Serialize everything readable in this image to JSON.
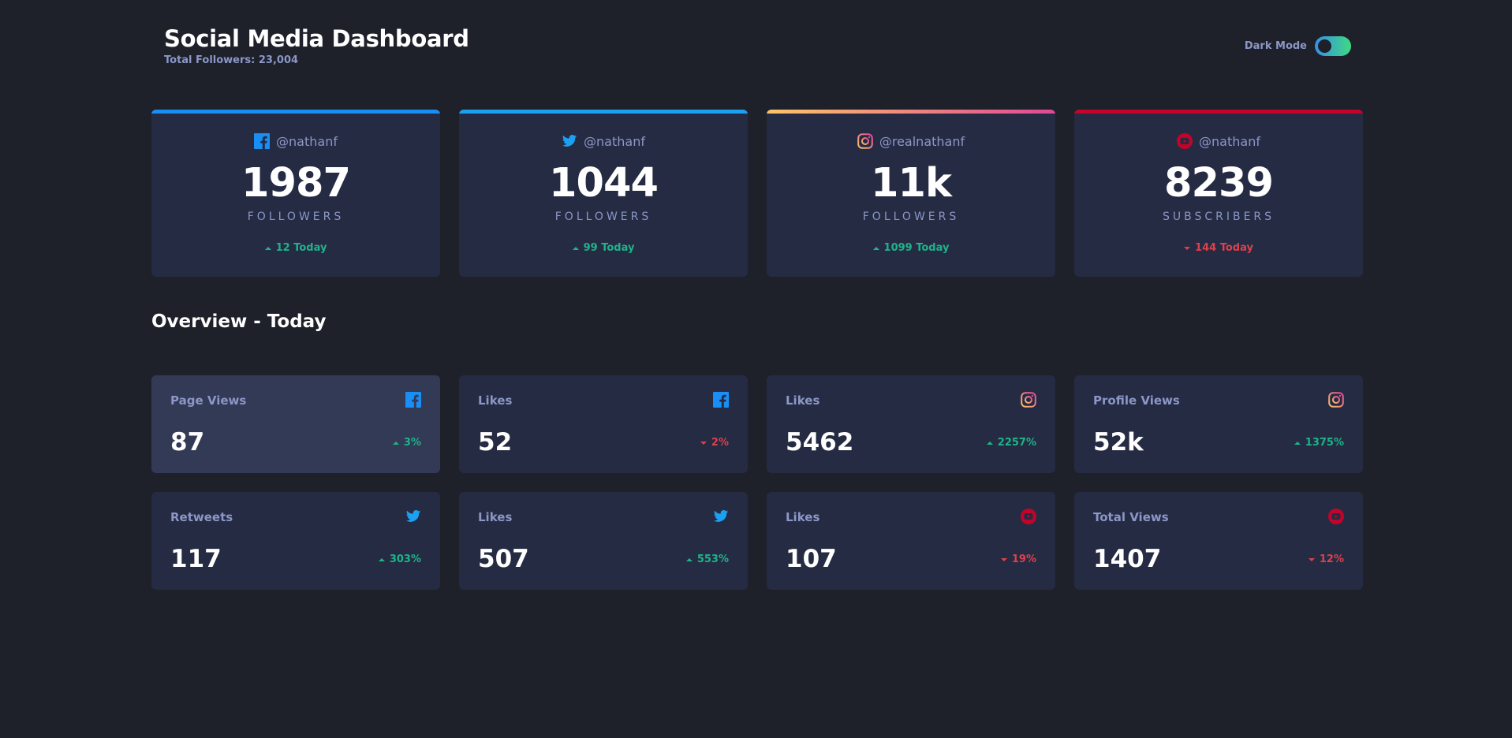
{
  "header": {
    "title": "Social Media Dashboard",
    "total_followers": "Total Followers: 23,004",
    "dark_mode_label": "Dark Mode"
  },
  "colors": {
    "background": "#1e202a",
    "card": "#252b43",
    "card_hover": "#333a56",
    "text_muted": "#8b97c6",
    "up": "#1db489",
    "down": "#dc414c",
    "facebook": "#198ff5",
    "twitter": "#1ca0f2",
    "instagram_start": "#fdc468",
    "instagram_end": "#df4996",
    "youtube": "#c4032a"
  },
  "follower_cards": [
    {
      "platform": "facebook",
      "icon": "facebook-icon",
      "handle": "@nathanf",
      "count": "1987",
      "unit": "FOLLOWERS",
      "today": "12 Today",
      "trend": "up"
    },
    {
      "platform": "twitter",
      "icon": "twitter-icon",
      "handle": "@nathanf",
      "count": "1044",
      "unit": "FOLLOWERS",
      "today": "99 Today",
      "trend": "up"
    },
    {
      "platform": "instagram",
      "icon": "instagram-icon",
      "handle": "@realnathanf",
      "count": "11k",
      "unit": "FOLLOWERS",
      "today": "1099 Today",
      "trend": "up"
    },
    {
      "platform": "youtube",
      "icon": "youtube-icon",
      "handle": "@nathanf",
      "count": "8239",
      "unit": "SUBSCRIBERS",
      "today": "144 Today",
      "trend": "down"
    }
  ],
  "overview": {
    "title": "Overview - Today",
    "items": [
      {
        "label": "Page Views",
        "platform": "facebook",
        "icon": "facebook-icon",
        "value": "87",
        "change": "3%",
        "trend": "up"
      },
      {
        "label": "Likes",
        "platform": "facebook",
        "icon": "facebook-icon",
        "value": "52",
        "change": "2%",
        "trend": "down"
      },
      {
        "label": "Likes",
        "platform": "instagram",
        "icon": "instagram-icon",
        "value": "5462",
        "change": "2257%",
        "trend": "up"
      },
      {
        "label": "Profile Views",
        "platform": "instagram",
        "icon": "instagram-icon",
        "value": "52k",
        "change": "1375%",
        "trend": "up"
      },
      {
        "label": "Retweets",
        "platform": "twitter",
        "icon": "twitter-icon",
        "value": "117",
        "change": "303%",
        "trend": "up"
      },
      {
        "label": "Likes",
        "platform": "twitter",
        "icon": "twitter-icon",
        "value": "507",
        "change": "553%",
        "trend": "up"
      },
      {
        "label": "Likes",
        "platform": "youtube",
        "icon": "youtube-icon",
        "value": "107",
        "change": "19%",
        "trend": "down"
      },
      {
        "label": "Total Views",
        "platform": "youtube",
        "icon": "youtube-icon",
        "value": "1407",
        "change": "12%",
        "trend": "down"
      }
    ]
  }
}
